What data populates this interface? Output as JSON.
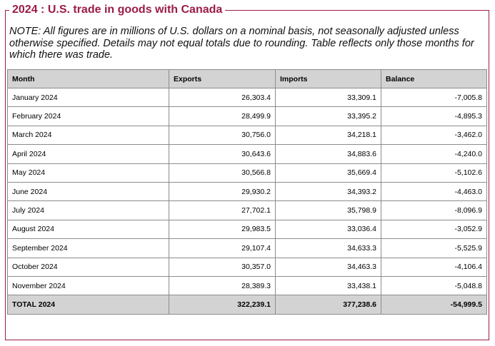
{
  "title": "2024 : U.S. trade in goods with Canada",
  "note": "NOTE: All figures are in millions of U.S. dollars on a nominal basis, not seasonally adjusted unless otherwise specified. Details may not equal totals due to rounding. Table reflects only those months for which there was trade.",
  "colors": {
    "accent": "#9b1b49",
    "header_bg": "#d3d3d3",
    "border": "#8c8c8c"
  },
  "table": {
    "headers": {
      "month": "Month",
      "exports": "Exports",
      "imports": "Imports",
      "balance": "Balance"
    },
    "rows": [
      {
        "month": "January 2024",
        "exports": "26,303.4",
        "imports": "33,309.1",
        "balance": "-7,005.8"
      },
      {
        "month": "February 2024",
        "exports": "28,499.9",
        "imports": "33,395.2",
        "balance": "-4,895.3"
      },
      {
        "month": "March 2024",
        "exports": "30,756.0",
        "imports": "34,218.1",
        "balance": "-3,462.0"
      },
      {
        "month": "April 2024",
        "exports": "30,643.6",
        "imports": "34,883.6",
        "balance": "-4,240.0"
      },
      {
        "month": "May 2024",
        "exports": "30,566.8",
        "imports": "35,669.4",
        "balance": "-5,102.6"
      },
      {
        "month": "June 2024",
        "exports": "29,930.2",
        "imports": "34,393.2",
        "balance": "-4,463.0"
      },
      {
        "month": "July 2024",
        "exports": "27,702.1",
        "imports": "35,798.9",
        "balance": "-8,096.9"
      },
      {
        "month": "August 2024",
        "exports": "29,983.5",
        "imports": "33,036.4",
        "balance": "-3,052.9"
      },
      {
        "month": "September 2024",
        "exports": "29,107.4",
        "imports": "34,633.3",
        "balance": "-5,525.9"
      },
      {
        "month": "October 2024",
        "exports": "30,357.0",
        "imports": "34,463.3",
        "balance": "-4,106.4"
      },
      {
        "month": "November 2024",
        "exports": "28,389.3",
        "imports": "33,438.1",
        "balance": "-5,048.8"
      }
    ],
    "total": {
      "month": "TOTAL 2024",
      "exports": "322,239.1",
      "imports": "377,238.6",
      "balance": "-54,999.5"
    }
  }
}
